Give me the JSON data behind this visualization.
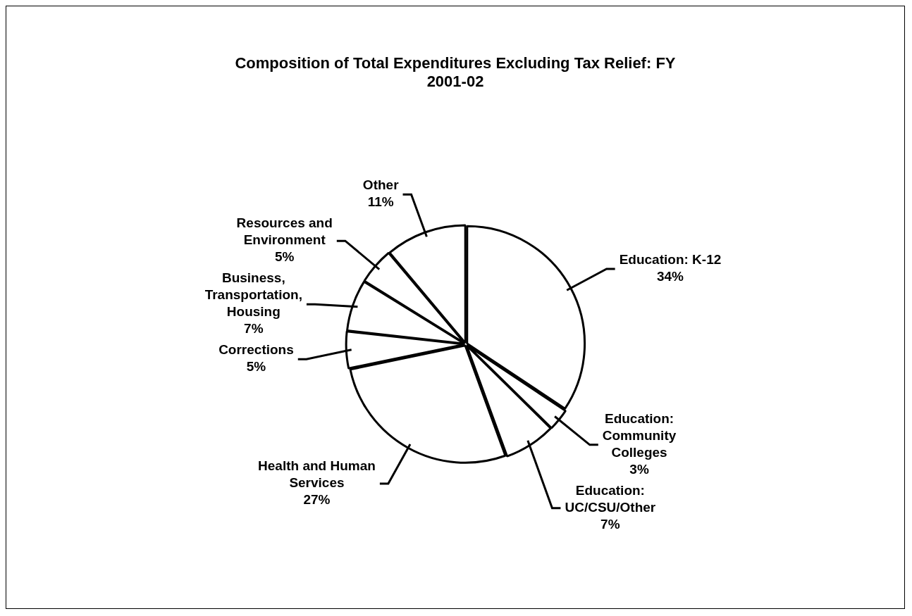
{
  "chart_data": {
    "type": "pie",
    "title": "Composition of Total Expenditures Excluding Tax Relief: FY 2001-02",
    "categories": [
      "Education: K-12",
      "Education: Community Colleges",
      "Education: UC/CSU/Other",
      "Health and Human Services",
      "Corrections",
      "Business, Transportation, Housing",
      "Resources and Environment",
      "Other"
    ],
    "values": [
      34,
      3,
      7,
      27,
      5,
      7,
      5,
      11
    ],
    "colors": [
      "#ffffff",
      "#ffffff",
      "#ffffff",
      "#ffffff",
      "#ffffff",
      "#ffffff",
      "#ffffff",
      "#ffffff"
    ],
    "value_labels": [
      "34%",
      "3%",
      "7%",
      "27%",
      "5%",
      "7%",
      "5%",
      "11%"
    ],
    "legend": false
  }
}
